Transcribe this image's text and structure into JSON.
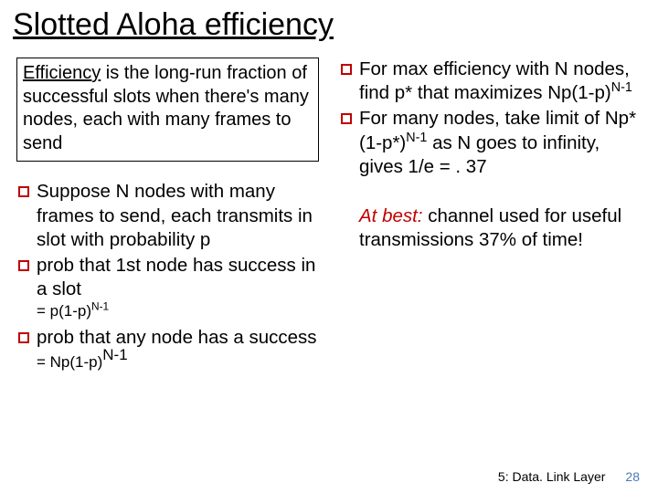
{
  "title": "Slotted Aloha efficiency",
  "definition": {
    "lead_underlined": "Efficiency",
    "rest": " is the long-run fraction of successful slots when there's many nodes, each with many frames to send"
  },
  "left_bullets": {
    "b1": "Suppose N nodes with many frames to send, each transmits in slot with probability p",
    "b2": "prob that 1st node has success in a slot",
    "b2_sub": "= p(1-p)",
    "b2_sup": "N-1",
    "b3_a": "prob that any node has a success ",
    "b3_eq": "= Np(1-p)",
    "b3_sup": "N-1"
  },
  "right_bullets": {
    "r1_a": "For max efficiency with N nodes, find p* that maximizes Np(1-p)",
    "r1_sup": "N-1",
    "r2_a": "For many nodes, take limit of Np*(1-p*)",
    "r2_sup": "N-1",
    "r2_b": " as N goes to infinity, gives 1/e = . 37"
  },
  "best": {
    "lead": "At best:",
    "rest": " channel used for useful transmissions 37% of time!"
  },
  "footer": {
    "chapter": "5: Data. Link Layer",
    "page": "28"
  },
  "colors": {
    "accent_red": "#c00000",
    "page_num": "#4a7ab5",
    "bg": "#ffffff"
  }
}
